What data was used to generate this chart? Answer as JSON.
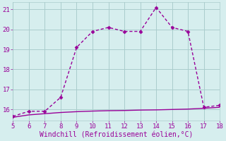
{
  "xlabel": "Windchill (Refroidissement éolien,°C)",
  "line1_x": [
    5,
    6,
    7,
    8,
    9,
    10,
    11,
    12,
    13,
    14,
    15,
    16,
    17,
    18
  ],
  "line1_y": [
    15.65,
    15.9,
    15.9,
    16.6,
    19.1,
    19.9,
    20.1,
    19.9,
    19.9,
    21.1,
    20.1,
    19.9,
    16.1,
    16.2
  ],
  "line2_x": [
    5,
    6,
    7,
    8,
    9,
    10,
    11,
    12,
    13,
    14,
    15,
    16,
    17,
    18
  ],
  "line2_y": [
    15.6,
    15.72,
    15.78,
    15.84,
    15.88,
    15.91,
    15.93,
    15.94,
    15.96,
    15.97,
    15.99,
    16.01,
    16.05,
    16.1
  ],
  "line_color": "#990099",
  "bg_color": "#d6eeee",
  "grid_color": "#aacccc",
  "spine_color": "#aaaaaa",
  "xlim": [
    5,
    18
  ],
  "ylim": [
    15.45,
    21.35
  ],
  "yticks": [
    16,
    17,
    18,
    19,
    20,
    21
  ],
  "xticks": [
    5,
    6,
    7,
    8,
    9,
    10,
    11,
    12,
    13,
    14,
    15,
    16,
    17,
    18
  ],
  "marker": "D",
  "markersize": 2.5,
  "linewidth": 1.0,
  "tick_fontsize": 6.5,
  "xlabel_fontsize": 7.0
}
